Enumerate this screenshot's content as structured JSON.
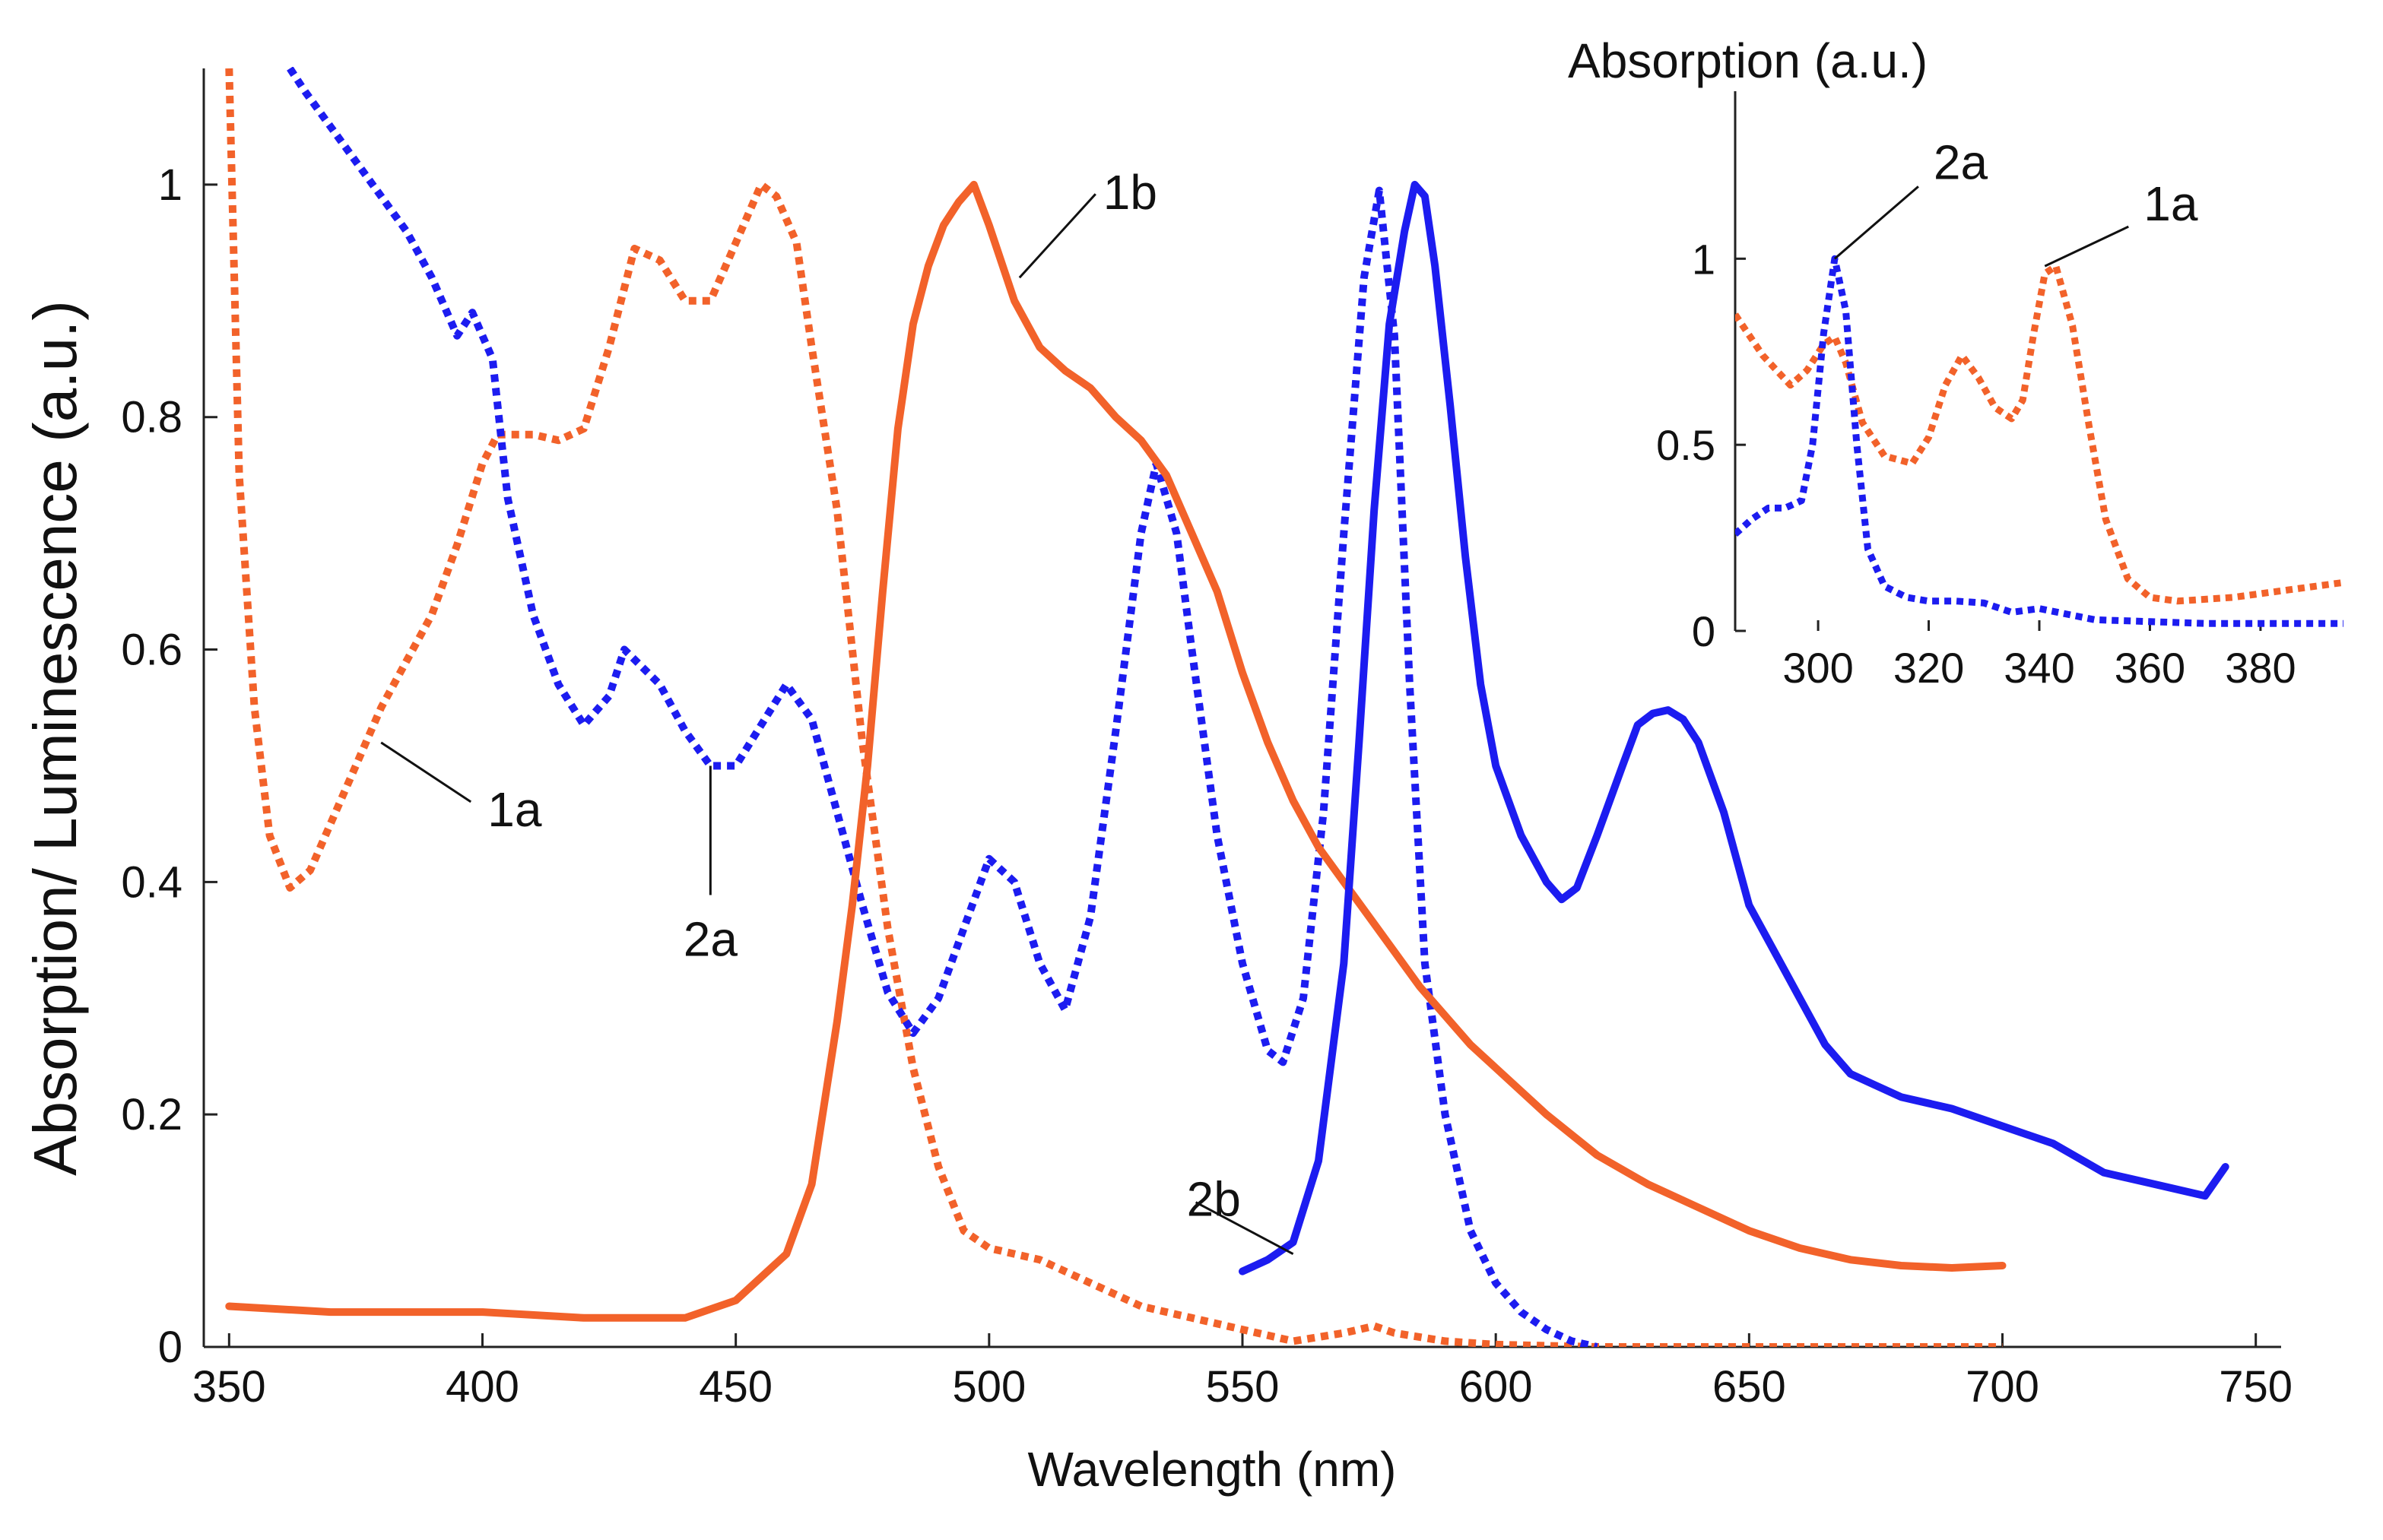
{
  "chart_data": [
    {
      "type": "line",
      "role": "main",
      "title": "",
      "xlabel": "Wavelength (nm)",
      "ylabel": "Absorption/ Luminescence (a.u.)",
      "xlim": [
        345,
        755
      ],
      "ylim": [
        0,
        1.1
      ],
      "xticks": [
        350,
        400,
        450,
        500,
        550,
        600,
        650,
        700,
        750
      ],
      "xtick_labels": [
        "350",
        "400",
        "450",
        "500",
        "550",
        "600",
        "650",
        "700",
        "750"
      ],
      "yticks": [
        0,
        0.2,
        0.4,
        0.6,
        0.8,
        1
      ],
      "ytick_labels": [
        "0",
        "0.2",
        "0.4",
        "0.6",
        "0.8",
        "1"
      ],
      "grid": false,
      "series": [
        {
          "name": "1a",
          "color": "#f2622a",
          "style": "dotted",
          "x": [
            350,
            352,
            355,
            358,
            362,
            366,
            370,
            375,
            380,
            385,
            390,
            395,
            400,
            403,
            406,
            410,
            415,
            420,
            425,
            430,
            435,
            440,
            445,
            450,
            455,
            458,
            462,
            465,
            470,
            475,
            480,
            485,
            490,
            495,
            500,
            510,
            520,
            530,
            540,
            550,
            560,
            570,
            576,
            580,
            590,
            600,
            620,
            650,
            700
          ],
          "y": [
            1.1,
            0.75,
            0.55,
            0.44,
            0.395,
            0.41,
            0.45,
            0.5,
            0.55,
            0.59,
            0.63,
            0.69,
            0.76,
            0.785,
            0.785,
            0.785,
            0.78,
            0.79,
            0.86,
            0.945,
            0.935,
            0.9,
            0.9,
            0.95,
            1.0,
            0.99,
            0.95,
            0.86,
            0.72,
            0.52,
            0.36,
            0.24,
            0.155,
            0.1,
            0.085,
            0.075,
            0.055,
            0.035,
            0.025,
            0.015,
            0.005,
            0.012,
            0.018,
            0.012,
            0.005,
            0.002,
            0.0,
            0.0,
            0.0
          ]
        },
        {
          "name": "2a",
          "color": "#1c1cf0",
          "style": "dotted",
          "x": [
            362,
            365,
            370,
            375,
            380,
            385,
            390,
            395,
            398,
            402,
            405,
            410,
            415,
            420,
            425,
            428,
            435,
            440,
            445,
            450,
            455,
            460,
            465,
            470,
            475,
            480,
            485,
            490,
            495,
            500,
            505,
            510,
            515,
            520,
            525,
            530,
            533,
            537,
            540,
            545,
            550,
            555,
            558,
            562,
            566,
            570,
            574,
            577,
            580,
            583,
            586,
            590,
            595,
            600,
            605,
            610,
            615,
            620
          ],
          "y": [
            1.1,
            1.08,
            1.05,
            1.02,
            0.99,
            0.96,
            0.92,
            0.87,
            0.89,
            0.85,
            0.73,
            0.63,
            0.57,
            0.535,
            0.56,
            0.6,
            0.57,
            0.53,
            0.5,
            0.5,
            0.535,
            0.57,
            0.54,
            0.46,
            0.38,
            0.305,
            0.27,
            0.3,
            0.36,
            0.42,
            0.4,
            0.33,
            0.29,
            0.37,
            0.53,
            0.7,
            0.76,
            0.7,
            0.6,
            0.44,
            0.33,
            0.255,
            0.245,
            0.3,
            0.46,
            0.7,
            0.92,
            0.995,
            0.87,
            0.57,
            0.33,
            0.2,
            0.1,
            0.055,
            0.03,
            0.015,
            0.005,
            0.0
          ]
        },
        {
          "name": "1b",
          "color": "#f2622a",
          "style": "solid",
          "x": [
            350,
            370,
            390,
            400,
            420,
            440,
            450,
            460,
            465,
            470,
            473,
            476,
            479,
            482,
            485,
            488,
            491,
            494,
            497,
            500,
            505,
            510,
            515,
            520,
            525,
            530,
            535,
            540,
            545,
            550,
            555,
            560,
            565,
            570,
            575,
            580,
            585,
            590,
            595,
            600,
            610,
            620,
            630,
            640,
            650,
            660,
            670,
            680,
            690,
            700
          ],
          "y": [
            0.035,
            0.03,
            0.03,
            0.03,
            0.025,
            0.025,
            0.04,
            0.08,
            0.14,
            0.28,
            0.38,
            0.5,
            0.65,
            0.79,
            0.88,
            0.93,
            0.965,
            0.985,
            1.0,
            0.965,
            0.9,
            0.86,
            0.84,
            0.825,
            0.8,
            0.78,
            0.75,
            0.7,
            0.65,
            0.58,
            0.52,
            0.47,
            0.43,
            0.4,
            0.37,
            0.34,
            0.31,
            0.285,
            0.26,
            0.24,
            0.2,
            0.165,
            0.14,
            0.12,
            0.1,
            0.085,
            0.075,
            0.07,
            0.068,
            0.07
          ]
        },
        {
          "name": "2b",
          "color": "#1c1cf0",
          "style": "solid",
          "x": [
            550,
            555,
            560,
            565,
            570,
            573,
            576,
            579,
            582,
            584,
            586,
            588,
            591,
            594,
            597,
            600,
            605,
            610,
            613,
            616,
            620,
            625,
            628,
            631,
            634,
            637,
            640,
            645,
            650,
            655,
            660,
            665,
            670,
            675,
            680,
            690,
            700,
            710,
            720,
            730,
            740,
            744
          ],
          "y": [
            0.065,
            0.075,
            0.09,
            0.16,
            0.33,
            0.52,
            0.72,
            0.88,
            0.96,
            1.0,
            0.99,
            0.93,
            0.81,
            0.68,
            0.57,
            0.5,
            0.44,
            0.4,
            0.385,
            0.395,
            0.44,
            0.5,
            0.535,
            0.545,
            0.548,
            0.54,
            0.52,
            0.46,
            0.38,
            0.34,
            0.3,
            0.26,
            0.235,
            0.225,
            0.215,
            0.205,
            0.19,
            0.175,
            0.15,
            0.14,
            0.13,
            0.155
          ]
        }
      ],
      "annotations": [
        {
          "text": "1a",
          "x": 380,
          "y": 0.52
        },
        {
          "text": "2a",
          "x": 445,
          "y": 0.5
        },
        {
          "text": "1b",
          "x": 506,
          "y": 0.92
        },
        {
          "text": "2b",
          "x": 560,
          "y": 0.08
        }
      ]
    },
    {
      "type": "line",
      "role": "inset",
      "title": "",
      "xlabel": "",
      "ylabel": "Absorption (a.u.)",
      "xlim": [
        285,
        395
      ],
      "ylim": [
        0,
        1.45
      ],
      "xticks": [
        300,
        320,
        340,
        360,
        380
      ],
      "xtick_labels": [
        "300",
        "320",
        "340",
        "360",
        "380"
      ],
      "yticks": [
        0,
        0.5,
        1
      ],
      "ytick_labels": [
        "0",
        "0.5",
        "1"
      ],
      "grid": false,
      "series": [
        {
          "name": "1a",
          "color": "#f2622a",
          "style": "dotted",
          "x": [
            285,
            290,
            295,
            298,
            301,
            303,
            305,
            308,
            312,
            317,
            320,
            323,
            326,
            329,
            332,
            335,
            337,
            339,
            341,
            343,
            346,
            349,
            352,
            356,
            360,
            365,
            370,
            375,
            380,
            385,
            390,
            395
          ],
          "y": [
            0.85,
            0.74,
            0.66,
            0.7,
            0.77,
            0.79,
            0.72,
            0.56,
            0.47,
            0.45,
            0.52,
            0.66,
            0.74,
            0.68,
            0.6,
            0.57,
            0.62,
            0.8,
            0.96,
            0.98,
            0.82,
            0.55,
            0.3,
            0.14,
            0.09,
            0.08,
            0.085,
            0.09,
            0.1,
            0.11,
            0.12,
            0.13
          ]
        },
        {
          "name": "2a",
          "color": "#1c1cf0",
          "style": "dotted",
          "x": [
            285,
            288,
            291,
            294,
            297,
            299,
            301,
            303,
            305,
            307,
            309,
            312,
            316,
            320,
            325,
            330,
            335,
            340,
            345,
            350,
            360,
            370,
            380,
            390,
            395
          ],
          "y": [
            0.26,
            0.3,
            0.33,
            0.33,
            0.35,
            0.5,
            0.8,
            1.0,
            0.86,
            0.5,
            0.22,
            0.12,
            0.09,
            0.08,
            0.08,
            0.075,
            0.05,
            0.06,
            0.045,
            0.03,
            0.025,
            0.02,
            0.02,
            0.02,
            0.02
          ]
        }
      ],
      "annotations": [
        {
          "text": "2a",
          "x": 303,
          "y": 1.0
        },
        {
          "text": "1a",
          "x": 341,
          "y": 0.98
        }
      ]
    }
  ]
}
